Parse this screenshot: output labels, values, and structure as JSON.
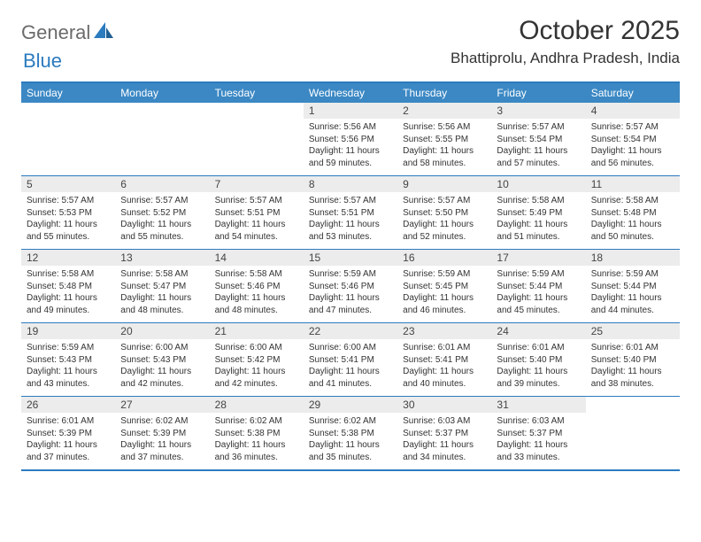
{
  "logo": {
    "text1": "General",
    "text2": "Blue"
  },
  "title": "October 2025",
  "location": "Bhattiprolu, Andhra Pradesh, India",
  "colors": {
    "header_bg": "#3b88c4",
    "border": "#2b7bbf",
    "daynum_bg": "#ececec",
    "text": "#333333",
    "logo_gray": "#6b6b6b",
    "logo_blue": "#2b7bbf"
  },
  "dow": [
    "Sunday",
    "Monday",
    "Tuesday",
    "Wednesday",
    "Thursday",
    "Friday",
    "Saturday"
  ],
  "weeks": [
    [
      {
        "n": "",
        "sr": "",
        "ss": "",
        "dl": ""
      },
      {
        "n": "",
        "sr": "",
        "ss": "",
        "dl": ""
      },
      {
        "n": "",
        "sr": "",
        "ss": "",
        "dl": ""
      },
      {
        "n": "1",
        "sr": "Sunrise: 5:56 AM",
        "ss": "Sunset: 5:56 PM",
        "dl": "Daylight: 11 hours and 59 minutes."
      },
      {
        "n": "2",
        "sr": "Sunrise: 5:56 AM",
        "ss": "Sunset: 5:55 PM",
        "dl": "Daylight: 11 hours and 58 minutes."
      },
      {
        "n": "3",
        "sr": "Sunrise: 5:57 AM",
        "ss": "Sunset: 5:54 PM",
        "dl": "Daylight: 11 hours and 57 minutes."
      },
      {
        "n": "4",
        "sr": "Sunrise: 5:57 AM",
        "ss": "Sunset: 5:54 PM",
        "dl": "Daylight: 11 hours and 56 minutes."
      }
    ],
    [
      {
        "n": "5",
        "sr": "Sunrise: 5:57 AM",
        "ss": "Sunset: 5:53 PM",
        "dl": "Daylight: 11 hours and 55 minutes."
      },
      {
        "n": "6",
        "sr": "Sunrise: 5:57 AM",
        "ss": "Sunset: 5:52 PM",
        "dl": "Daylight: 11 hours and 55 minutes."
      },
      {
        "n": "7",
        "sr": "Sunrise: 5:57 AM",
        "ss": "Sunset: 5:51 PM",
        "dl": "Daylight: 11 hours and 54 minutes."
      },
      {
        "n": "8",
        "sr": "Sunrise: 5:57 AM",
        "ss": "Sunset: 5:51 PM",
        "dl": "Daylight: 11 hours and 53 minutes."
      },
      {
        "n": "9",
        "sr": "Sunrise: 5:57 AM",
        "ss": "Sunset: 5:50 PM",
        "dl": "Daylight: 11 hours and 52 minutes."
      },
      {
        "n": "10",
        "sr": "Sunrise: 5:58 AM",
        "ss": "Sunset: 5:49 PM",
        "dl": "Daylight: 11 hours and 51 minutes."
      },
      {
        "n": "11",
        "sr": "Sunrise: 5:58 AM",
        "ss": "Sunset: 5:48 PM",
        "dl": "Daylight: 11 hours and 50 minutes."
      }
    ],
    [
      {
        "n": "12",
        "sr": "Sunrise: 5:58 AM",
        "ss": "Sunset: 5:48 PM",
        "dl": "Daylight: 11 hours and 49 minutes."
      },
      {
        "n": "13",
        "sr": "Sunrise: 5:58 AM",
        "ss": "Sunset: 5:47 PM",
        "dl": "Daylight: 11 hours and 48 minutes."
      },
      {
        "n": "14",
        "sr": "Sunrise: 5:58 AM",
        "ss": "Sunset: 5:46 PM",
        "dl": "Daylight: 11 hours and 48 minutes."
      },
      {
        "n": "15",
        "sr": "Sunrise: 5:59 AM",
        "ss": "Sunset: 5:46 PM",
        "dl": "Daylight: 11 hours and 47 minutes."
      },
      {
        "n": "16",
        "sr": "Sunrise: 5:59 AM",
        "ss": "Sunset: 5:45 PM",
        "dl": "Daylight: 11 hours and 46 minutes."
      },
      {
        "n": "17",
        "sr": "Sunrise: 5:59 AM",
        "ss": "Sunset: 5:44 PM",
        "dl": "Daylight: 11 hours and 45 minutes."
      },
      {
        "n": "18",
        "sr": "Sunrise: 5:59 AM",
        "ss": "Sunset: 5:44 PM",
        "dl": "Daylight: 11 hours and 44 minutes."
      }
    ],
    [
      {
        "n": "19",
        "sr": "Sunrise: 5:59 AM",
        "ss": "Sunset: 5:43 PM",
        "dl": "Daylight: 11 hours and 43 minutes."
      },
      {
        "n": "20",
        "sr": "Sunrise: 6:00 AM",
        "ss": "Sunset: 5:43 PM",
        "dl": "Daylight: 11 hours and 42 minutes."
      },
      {
        "n": "21",
        "sr": "Sunrise: 6:00 AM",
        "ss": "Sunset: 5:42 PM",
        "dl": "Daylight: 11 hours and 42 minutes."
      },
      {
        "n": "22",
        "sr": "Sunrise: 6:00 AM",
        "ss": "Sunset: 5:41 PM",
        "dl": "Daylight: 11 hours and 41 minutes."
      },
      {
        "n": "23",
        "sr": "Sunrise: 6:01 AM",
        "ss": "Sunset: 5:41 PM",
        "dl": "Daylight: 11 hours and 40 minutes."
      },
      {
        "n": "24",
        "sr": "Sunrise: 6:01 AM",
        "ss": "Sunset: 5:40 PM",
        "dl": "Daylight: 11 hours and 39 minutes."
      },
      {
        "n": "25",
        "sr": "Sunrise: 6:01 AM",
        "ss": "Sunset: 5:40 PM",
        "dl": "Daylight: 11 hours and 38 minutes."
      }
    ],
    [
      {
        "n": "26",
        "sr": "Sunrise: 6:01 AM",
        "ss": "Sunset: 5:39 PM",
        "dl": "Daylight: 11 hours and 37 minutes."
      },
      {
        "n": "27",
        "sr": "Sunrise: 6:02 AM",
        "ss": "Sunset: 5:39 PM",
        "dl": "Daylight: 11 hours and 37 minutes."
      },
      {
        "n": "28",
        "sr": "Sunrise: 6:02 AM",
        "ss": "Sunset: 5:38 PM",
        "dl": "Daylight: 11 hours and 36 minutes."
      },
      {
        "n": "29",
        "sr": "Sunrise: 6:02 AM",
        "ss": "Sunset: 5:38 PM",
        "dl": "Daylight: 11 hours and 35 minutes."
      },
      {
        "n": "30",
        "sr": "Sunrise: 6:03 AM",
        "ss": "Sunset: 5:37 PM",
        "dl": "Daylight: 11 hours and 34 minutes."
      },
      {
        "n": "31",
        "sr": "Sunrise: 6:03 AM",
        "ss": "Sunset: 5:37 PM",
        "dl": "Daylight: 11 hours and 33 minutes."
      },
      {
        "n": "",
        "sr": "",
        "ss": "",
        "dl": ""
      }
    ]
  ]
}
